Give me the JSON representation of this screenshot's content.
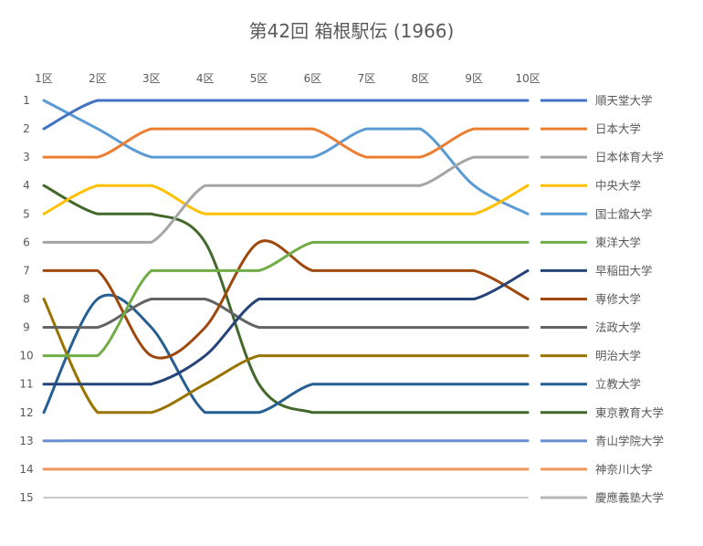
{
  "chart_data": {
    "type": "line",
    "title": "第42回 箱根駅伝 (1966)",
    "x": [
      "1区",
      "2区",
      "3区",
      "4区",
      "5区",
      "6区",
      "7区",
      "8区",
      "9区",
      "10区"
    ],
    "yticks": [
      "1",
      "2",
      "3",
      "4",
      "5",
      "6",
      "7",
      "8",
      "9",
      "10",
      "11",
      "12",
      "13",
      "14",
      "15"
    ],
    "ylim": [
      1,
      15
    ],
    "y_reversed": true,
    "grid": false,
    "legend_position": "right",
    "series": [
      {
        "name": "順天堂大学",
        "color": "#4472C4",
        "values": [
          2,
          1,
          1,
          1,
          1,
          1,
          1,
          1,
          1,
          1
        ]
      },
      {
        "name": "日本大学",
        "color": "#ED7D31",
        "values": [
          3,
          3,
          2,
          2,
          2,
          2,
          3,
          3,
          2,
          2
        ]
      },
      {
        "name": "日本体育大学",
        "color": "#A5A5A5",
        "values": [
          6,
          6,
          6,
          4,
          4,
          4,
          4,
          4,
          3,
          3
        ]
      },
      {
        "name": "中央大学",
        "color": "#FFC000",
        "values": [
          5,
          4,
          4,
          5,
          5,
          5,
          5,
          5,
          5,
          4
        ]
      },
      {
        "name": "国士舘大学",
        "color": "#5B9BD5",
        "values": [
          1,
          2,
          3,
          3,
          3,
          3,
          2,
          2,
          4,
          5
        ]
      },
      {
        "name": "東洋大学",
        "color": "#70AD47",
        "values": [
          10,
          10,
          7,
          7,
          7,
          6,
          6,
          6,
          6,
          6
        ]
      },
      {
        "name": "早稲田大学",
        "color": "#264478",
        "values": [
          11,
          11,
          11,
          10,
          8,
          8,
          8,
          8,
          8,
          7
        ]
      },
      {
        "name": "専修大学",
        "color": "#9E480E",
        "values": [
          7,
          7,
          10,
          9,
          6,
          7,
          7,
          7,
          7,
          8
        ]
      },
      {
        "name": "法政大学",
        "color": "#636363",
        "values": [
          9,
          9,
          8,
          8,
          9,
          9,
          9,
          9,
          9,
          9
        ]
      },
      {
        "name": "明治大学",
        "color": "#997300",
        "values": [
          8,
          12,
          12,
          11,
          10,
          10,
          10,
          10,
          10,
          10
        ]
      },
      {
        "name": "立教大学",
        "color": "#255E91",
        "values": [
          12,
          8,
          9,
          12,
          12,
          11,
          11,
          11,
          11,
          11
        ]
      },
      {
        "name": "東京教育大学",
        "color": "#43682B",
        "values": [
          4,
          5,
          5,
          6,
          11,
          12,
          12,
          12,
          12,
          12
        ]
      },
      {
        "name": "青山学院大学",
        "color": "#698ED0",
        "values": [
          13,
          13,
          13,
          13,
          13,
          13,
          13,
          13,
          13,
          13
        ]
      },
      {
        "name": "神奈川大学",
        "color": "#F1975A",
        "values": [
          14,
          14,
          14,
          14,
          14,
          14,
          14,
          14,
          14,
          14
        ]
      },
      {
        "name": "慶應義塾大学",
        "color": "#B7B7B7",
        "values": [
          15,
          15,
          15,
          15,
          15,
          15,
          15,
          15,
          15,
          15
        ]
      }
    ]
  }
}
